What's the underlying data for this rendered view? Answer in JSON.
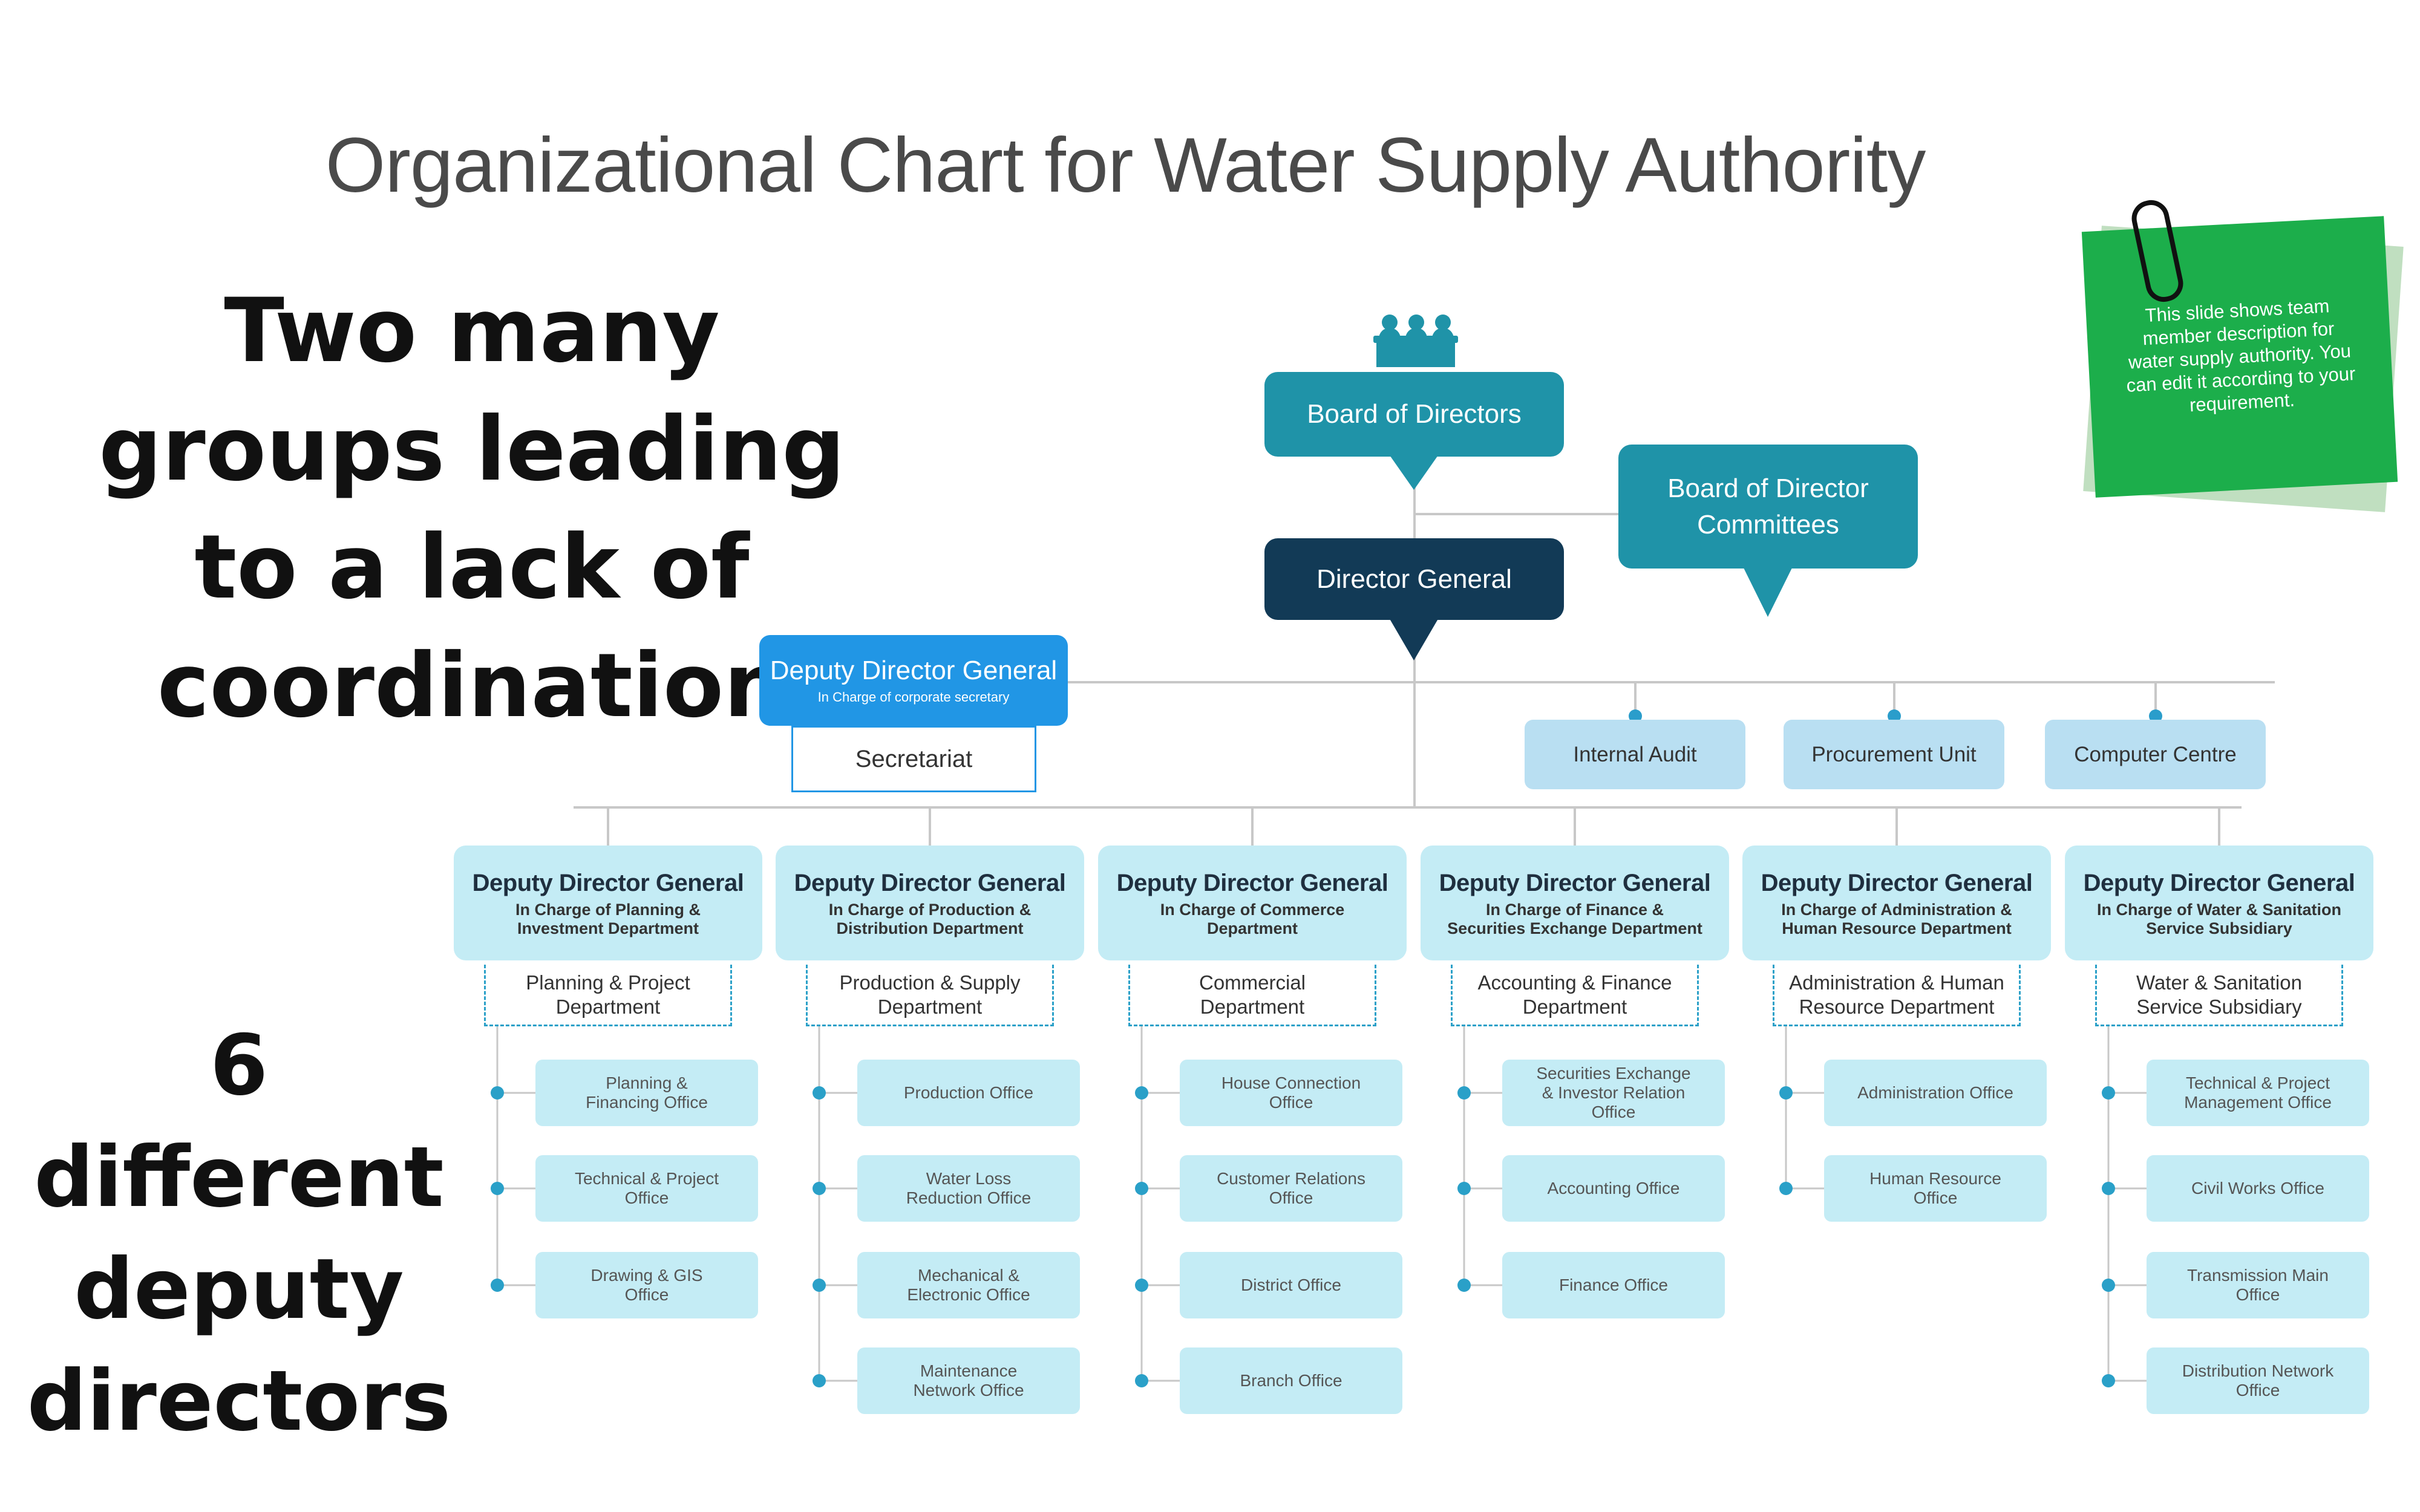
{
  "title": "Organizational Chart for Water Supply Authority",
  "annotation_top": "Two many groups leading to a lack of coordination",
  "annotation_bottom": "6 different deputy directors",
  "board": "Board of Directors",
  "committees": [
    "Board of Director",
    "Committees"
  ],
  "director_general": "Director General",
  "secretary_ddg": {
    "title": "Deputy Director General",
    "subtitle": "In Charge of corporate secretary"
  },
  "secretariat": "Secretariat",
  "units": [
    "Internal Audit",
    "Procurement Unit",
    "Computer Centre"
  ],
  "deputies": [
    {
      "title": "Deputy Director General",
      "subtitle": [
        "In Charge of Planning &",
        "Investment Department"
      ],
      "department": [
        "Planning & Project",
        "Department"
      ],
      "offices": [
        [
          "Planning &",
          "Financing Office"
        ],
        [
          "Technical & Project",
          "Office"
        ],
        [
          "Drawing & GIS",
          "Office"
        ]
      ]
    },
    {
      "title": "Deputy Director General",
      "subtitle": [
        "In Charge of Production &",
        "Distribution Department"
      ],
      "department": [
        "Production & Supply",
        "Department"
      ],
      "offices": [
        [
          "Production Office"
        ],
        [
          "Water Loss",
          "Reduction Office"
        ],
        [
          "Mechanical &",
          "Electronic Office"
        ],
        [
          "Maintenance",
          "Network Office"
        ]
      ]
    },
    {
      "title": "Deputy Director General",
      "subtitle": [
        "In Charge of Commerce",
        "Department"
      ],
      "department": [
        "Commercial",
        "Department"
      ],
      "offices": [
        [
          "House Connection",
          "Office"
        ],
        [
          "Customer Relations",
          "Office"
        ],
        [
          "District Office"
        ],
        [
          "Branch Office"
        ]
      ]
    },
    {
      "title": "Deputy Director General",
      "subtitle": [
        "In Charge of Finance &",
        "Securities Exchange Department"
      ],
      "department": [
        "Accounting & Finance",
        "Department"
      ],
      "offices": [
        [
          "Securities Exchange",
          "& Investor Relation",
          "Office"
        ],
        [
          "Accounting Office"
        ],
        [
          "Finance Office"
        ]
      ]
    },
    {
      "title": "Deputy Director General",
      "subtitle": [
        "In Charge of Administration &",
        "Human Resource Department"
      ],
      "department": [
        "Administration & Human",
        "Resource Department"
      ],
      "offices": [
        [
          "Administration Office"
        ],
        [
          "Human Resource",
          "Office"
        ]
      ]
    },
    {
      "title": "Deputy Director General",
      "subtitle": [
        "In Charge of Water & Sanitation",
        "Service Subsidiary"
      ],
      "department": [
        "Water & Sanitation",
        "Service Subsidiary"
      ],
      "offices": [
        [
          "Technical & Project",
          "Management Office"
        ],
        [
          "Civil Works Office"
        ],
        [
          "Transmission Main",
          "Office"
        ],
        [
          "Distribution Network",
          "Office"
        ]
      ]
    }
  ],
  "sticky_note": "This slide shows team member description for water supply authority. You can edit it according to your requirement.",
  "colors": {
    "board_teal": "#1f93a8",
    "director_navy": "#123a56",
    "secretary_blue": "#2196e5",
    "unit_blue": "#b9dff2",
    "deputy_fill": "#c4ecf5",
    "dept_border": "#2aa0c8",
    "connector": "#c8c8c8",
    "note_green": "#1cae4b"
  }
}
